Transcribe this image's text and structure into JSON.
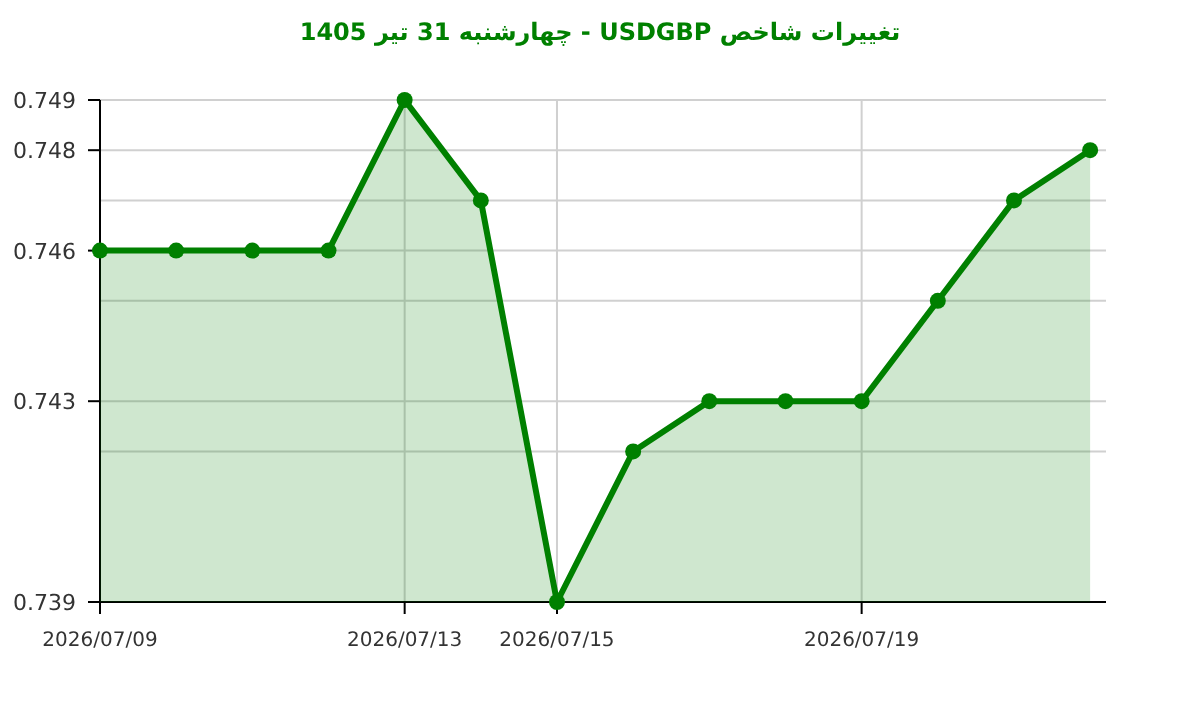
{
  "chart_data": {
    "type": "area",
    "title": "تغییرات شاخص USDGBP - چهارشنبه  31 تیر 1405",
    "x": [
      "2026-07-09",
      "2026-07-10",
      "2026-07-11",
      "2026-07-12",
      "2026-07-13",
      "2026-07-14",
      "2026-07-15",
      "2026-07-16",
      "2026-07-17",
      "2026-07-18",
      "2026-07-19",
      "2026-07-20",
      "2026-07-21",
      "2026-07-22"
    ],
    "series": [
      {
        "color": "#008000",
        "values": [
          0.746,
          0.746,
          0.746,
          0.746,
          0.749,
          0.747,
          0.739,
          0.742,
          0.743,
          0.743,
          0.743,
          0.745,
          0.747,
          0.748
        ]
      }
    ],
    "xlim": [
      "2026-07-09",
      "2026-07-22T05:00"
    ],
    "xticks": [
      {
        "value": "2026-07-09",
        "label": "2026/07/09"
      },
      {
        "value": "2026-07-13",
        "label": "2026/07/13"
      },
      {
        "value": "2026-07-15",
        "label": "2026/07/15"
      },
      {
        "value": "2026-07-19",
        "label": "2026/07/19"
      }
    ],
    "ylim": [
      0.739,
      0.749
    ],
    "yticks": [
      0.739,
      {
        "value": 0.742,
        "label": null
      },
      0.743,
      {
        "value": 0.745,
        "label": null
      },
      0.746,
      {
        "value": 0.747,
        "label": null
      },
      0.748,
      0.749
    ],
    "grid": true,
    "marker": "circle",
    "line_style": "solid"
  }
}
